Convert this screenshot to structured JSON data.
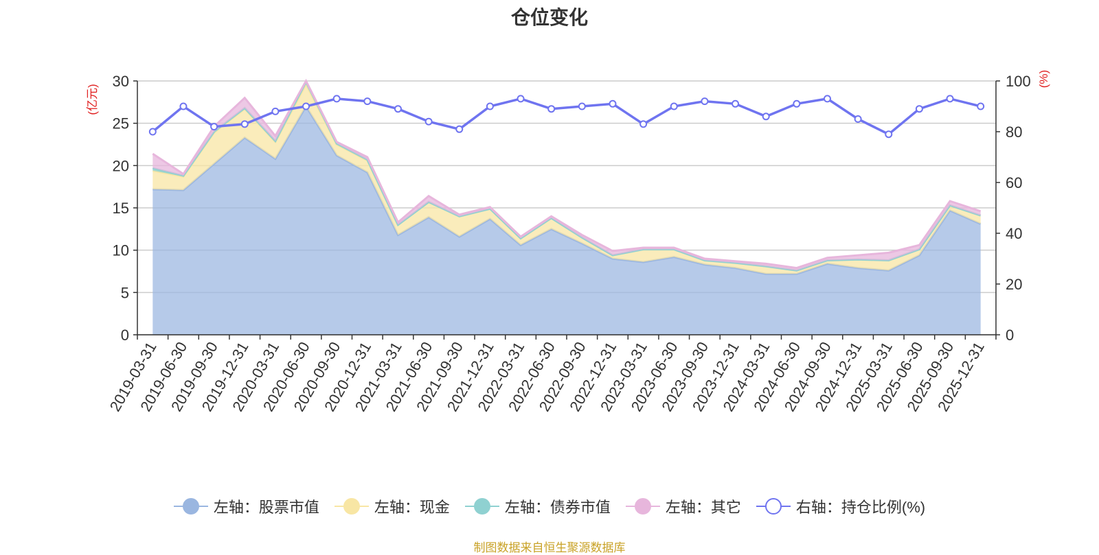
{
  "title": "仓位变化",
  "source_note": "制图数据来自恒生聚源数据库",
  "left_unit": "(亿元)",
  "right_unit": "(%)",
  "legend": [
    {
      "label": "左轴：股票市值",
      "color": "#9ab6e0",
      "fill": "#9ab6e0",
      "hollow": false
    },
    {
      "label": "左轴：现金",
      "color": "#f8e6a4",
      "fill": "#f8e6a4",
      "hollow": false
    },
    {
      "label": "左轴：债券市值",
      "color": "#8fd1d1",
      "fill": "#8fd1d1",
      "hollow": false
    },
    {
      "label": "左轴：其它",
      "color": "#e7b6dc",
      "fill": "#e7b6dc",
      "hollow": false
    },
    {
      "label": "右轴：持仓比例(%)",
      "color": "#6f74f0",
      "fill": "#ffffff",
      "hollow": true
    }
  ],
  "chart_data": {
    "type": "area",
    "title": "仓位变化",
    "categories": [
      "2019-03-31",
      "2019-06-30",
      "2019-09-30",
      "2019-12-31",
      "2020-03-31",
      "2020-06-30",
      "2020-09-30",
      "2020-12-31",
      "2021-03-31",
      "2021-06-30",
      "2021-09-30",
      "2021-12-31",
      "2022-03-31",
      "2022-06-30",
      "2022-09-30",
      "2022-12-31",
      "2023-03-31",
      "2023-06-30",
      "2023-09-30",
      "2023-12-31",
      "2024-03-31",
      "2024-06-30",
      "2024-09-30",
      "2024-12-31",
      "2025-03-31",
      "2025-06-30",
      "2025-09-30",
      "2025-12-31"
    ],
    "left_axis": {
      "label": "(亿元)",
      "ylim": [
        0,
        30
      ],
      "ticks": [
        0,
        5,
        10,
        15,
        20,
        25,
        30
      ]
    },
    "right_axis": {
      "label": "(%)",
      "ylim": [
        0,
        100
      ],
      "ticks": [
        0,
        20,
        40,
        60,
        80,
        100
      ]
    },
    "stacked_series": [
      {
        "name": "左轴：股票市值",
        "color": "#9ab6e0",
        "values": [
          17.2,
          17.1,
          20.2,
          23.3,
          20.8,
          27.0,
          21.2,
          19.2,
          11.8,
          13.9,
          11.6,
          13.7,
          10.6,
          12.5,
          10.8,
          9.0,
          8.6,
          9.2,
          8.3,
          7.9,
          7.2,
          7.2,
          8.4,
          7.9,
          7.6,
          9.4,
          14.7,
          13.1
        ]
      },
      {
        "name": "左轴：现金",
        "color": "#f8e6a4",
        "values": [
          2.2,
          1.6,
          3.7,
          3.4,
          2.0,
          2.6,
          1.3,
          1.4,
          1.2,
          1.8,
          2.4,
          1.2,
          0.8,
          1.3,
          0.7,
          0.4,
          1.5,
          0.9,
          0.5,
          0.6,
          0.9,
          0.4,
          0.4,
          1.0,
          1.2,
          0.7,
          0.6,
          1.0
        ]
      },
      {
        "name": "左轴：债券市值",
        "color": "#8fd1d1",
        "values": [
          0.3,
          0.1,
          0.1,
          0.1,
          0.1,
          0.3,
          0.1,
          0.1,
          0.0,
          0.0,
          0.0,
          0.0,
          0.0,
          0.0,
          0.0,
          0.0,
          0.0,
          0.0,
          0.0,
          0.0,
          0.0,
          0.0,
          0.0,
          0.0,
          0.0,
          0.0,
          0.0,
          0.0
        ]
      },
      {
        "name": "左轴：其它",
        "color": "#e7b6dc",
        "values": [
          1.7,
          0.2,
          0.6,
          1.2,
          0.6,
          0.1,
          0.2,
          0.3,
          0.3,
          0.7,
          0.2,
          0.2,
          0.2,
          0.2,
          0.3,
          0.5,
          0.2,
          0.2,
          0.2,
          0.2,
          0.3,
          0.3,
          0.3,
          0.5,
          0.9,
          0.5,
          0.5,
          0.5
        ]
      }
    ],
    "line_series": {
      "name": "右轴：持仓比例(%)",
      "color": "#6f74f0",
      "values": [
        80,
        90,
        82,
        83,
        88,
        90,
        93,
        92,
        89,
        84,
        81,
        90,
        93,
        89,
        90,
        91,
        83,
        90,
        92,
        91,
        86,
        91,
        93,
        85,
        79,
        89,
        93,
        90
      ]
    }
  }
}
